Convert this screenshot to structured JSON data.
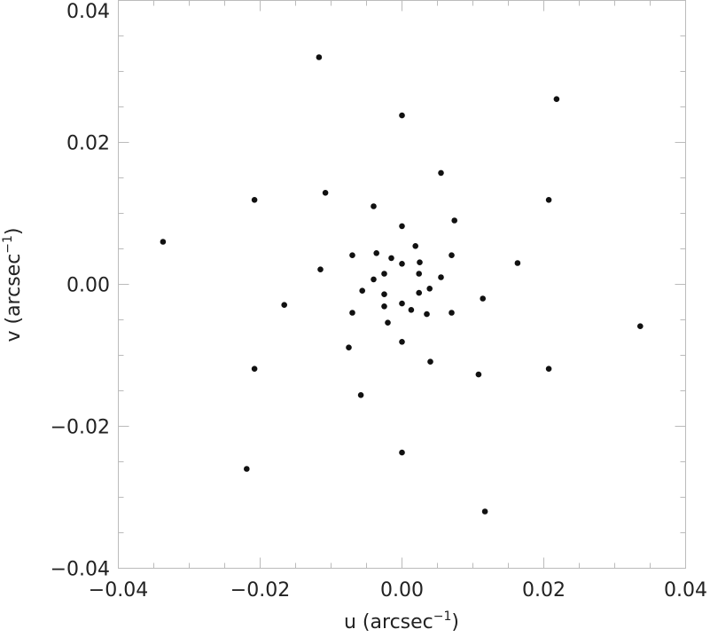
{
  "chart_data": {
    "type": "scatter",
    "title": "",
    "xlabel": "u (arcsec",
    "ylabel": "v (arcsec",
    "label_exponent": "−1",
    "xlim": [
      -0.04,
      0.04
    ],
    "ylim": [
      -0.04,
      0.04
    ],
    "xticks": [
      "−0.04",
      "−0.02",
      "0.00",
      "0.02",
      "0.04"
    ],
    "yticks": [
      "−0.04",
      "−0.02",
      "0.00",
      "0.02",
      "0.04"
    ],
    "grid": false,
    "marker_color": "#111111",
    "axis_color": "#bbbbbb",
    "points": [
      [
        -0.0117,
        0.032
      ],
      [
        0.0218,
        0.0261
      ],
      [
        0.0,
        0.0238
      ],
      [
        0.0055,
        0.0157
      ],
      [
        -0.0108,
        0.0129
      ],
      [
        -0.0208,
        0.0119
      ],
      [
        0.0207,
        0.0119
      ],
      [
        -0.004,
        0.011
      ],
      [
        0.0074,
        0.009
      ],
      [
        0.0,
        0.0082
      ],
      [
        -0.0337,
        0.006
      ],
      [
        0.0019,
        0.0054
      ],
      [
        -0.0036,
        0.0044
      ],
      [
        -0.007,
        0.0041
      ],
      [
        0.007,
        0.0041
      ],
      [
        -0.0015,
        0.0037
      ],
      [
        0.0025,
        0.0031
      ],
      [
        0.0,
        0.0029
      ],
      [
        0.0163,
        0.003
      ],
      [
        -0.0115,
        0.0021
      ],
      [
        0.0024,
        0.0015
      ],
      [
        -0.0025,
        0.0015
      ],
      [
        0.0055,
        0.001
      ],
      [
        -0.004,
        0.0007
      ],
      [
        0.0039,
        -0.0006
      ],
      [
        -0.0056,
        -0.0009
      ],
      [
        -0.0025,
        -0.0014
      ],
      [
        0.0024,
        -0.0012
      ],
      [
        0.0114,
        -0.002
      ],
      [
        -0.0166,
        -0.0029
      ],
      [
        0.0,
        -0.0027
      ],
      [
        -0.0025,
        -0.0031
      ],
      [
        0.0013,
        -0.0036
      ],
      [
        -0.007,
        -0.004
      ],
      [
        0.0035,
        -0.0042
      ],
      [
        0.007,
        -0.004
      ],
      [
        -0.002,
        -0.0054
      ],
      [
        0.0336,
        -0.0059
      ],
      [
        0.0,
        -0.0081
      ],
      [
        -0.0075,
        -0.0089
      ],
      [
        0.004,
        -0.0109
      ],
      [
        -0.0208,
        -0.0119
      ],
      [
        0.0207,
        -0.0119
      ],
      [
        0.0108,
        -0.0127
      ],
      [
        -0.0058,
        -0.0156
      ],
      [
        0.0,
        -0.0237
      ],
      [
        -0.0219,
        -0.026
      ],
      [
        0.0117,
        -0.032
      ]
    ]
  }
}
